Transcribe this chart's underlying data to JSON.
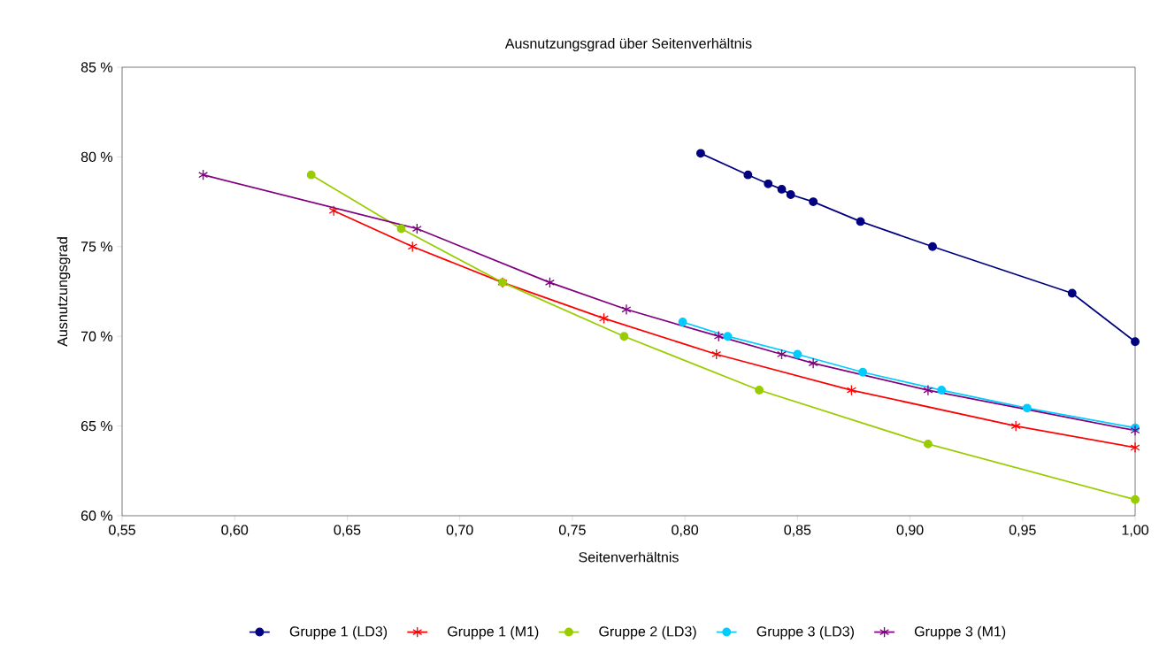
{
  "chart_data": {
    "type": "line",
    "title": "Ausnutzungsgrad über Seitenverhältnis",
    "xlabel": "Seitenverhältnis",
    "ylabel": "Ausnutzungsgrad",
    "xlim": [
      0.55,
      1.0
    ],
    "xticks": [
      {
        "value": 0.55,
        "label": "0,55"
      },
      {
        "value": 0.6,
        "label": "0,60"
      },
      {
        "value": 0.65,
        "label": "0,65"
      },
      {
        "value": 0.7,
        "label": "0,70"
      },
      {
        "value": 0.75,
        "label": "0,75"
      },
      {
        "value": 0.8,
        "label": "0,80"
      },
      {
        "value": 0.85,
        "label": "0,85"
      },
      {
        "value": 0.9,
        "label": "0,90"
      },
      {
        "value": 0.95,
        "label": "0,95"
      },
      {
        "value": 1.0,
        "label": "1,00"
      }
    ],
    "ylim": [
      60,
      85
    ],
    "yticks": [
      {
        "value": 60,
        "label": "60 %"
      },
      {
        "value": 65,
        "label": "65 %"
      },
      {
        "value": 70,
        "label": "70 %"
      },
      {
        "value": 75,
        "label": "75 %"
      },
      {
        "value": 80,
        "label": "80 %"
      },
      {
        "value": 85,
        "label": "85 %"
      }
    ],
    "grid": false,
    "legend": "bottom",
    "line_style": "solid",
    "series": [
      {
        "name": "Gruppe 1 (LD3)",
        "color": "#000080",
        "marker": "circle",
        "x": [
          0.807,
          0.828,
          0.837,
          0.843,
          0.847,
          0.857,
          0.878,
          0.91,
          0.972,
          1.0
        ],
        "values": [
          80.2,
          79.0,
          78.5,
          78.2,
          77.9,
          77.5,
          76.4,
          75.0,
          72.4,
          69.7
        ]
      },
      {
        "name": "Gruppe 1 (M1)",
        "color": "#ff0000",
        "marker": "cross",
        "x": [
          0.644,
          0.679,
          0.719,
          0.764,
          0.814,
          0.874,
          0.947,
          1.0
        ],
        "values": [
          77.0,
          75.0,
          73.0,
          71.0,
          69.0,
          67.0,
          65.0,
          63.8
        ]
      },
      {
        "name": "Gruppe 2 (LD3)",
        "color": "#99cc00",
        "marker": "circle",
        "x": [
          0.634,
          0.674,
          0.719,
          0.773,
          0.833,
          0.908,
          1.0
        ],
        "values": [
          79.0,
          76.0,
          73.0,
          70.0,
          67.0,
          64.0,
          60.9
        ]
      },
      {
        "name": "Gruppe 3 (LD3)",
        "color": "#00ccff",
        "marker": "circle",
        "x": [
          0.799,
          0.819,
          0.85,
          0.879,
          0.914,
          0.952,
          1.0
        ],
        "values": [
          70.8,
          70.0,
          69.0,
          68.0,
          67.0,
          66.0,
          64.9
        ]
      },
      {
        "name": "Gruppe 3 (M1)",
        "color": "#800080",
        "marker": "cross",
        "x": [
          0.586,
          0.681,
          0.74,
          0.774,
          0.815,
          0.843,
          0.857,
          0.908,
          1.0
        ],
        "values": [
          79.0,
          76.0,
          73.0,
          71.5,
          70.0,
          69.0,
          68.5,
          67.0,
          64.75
        ]
      }
    ]
  }
}
